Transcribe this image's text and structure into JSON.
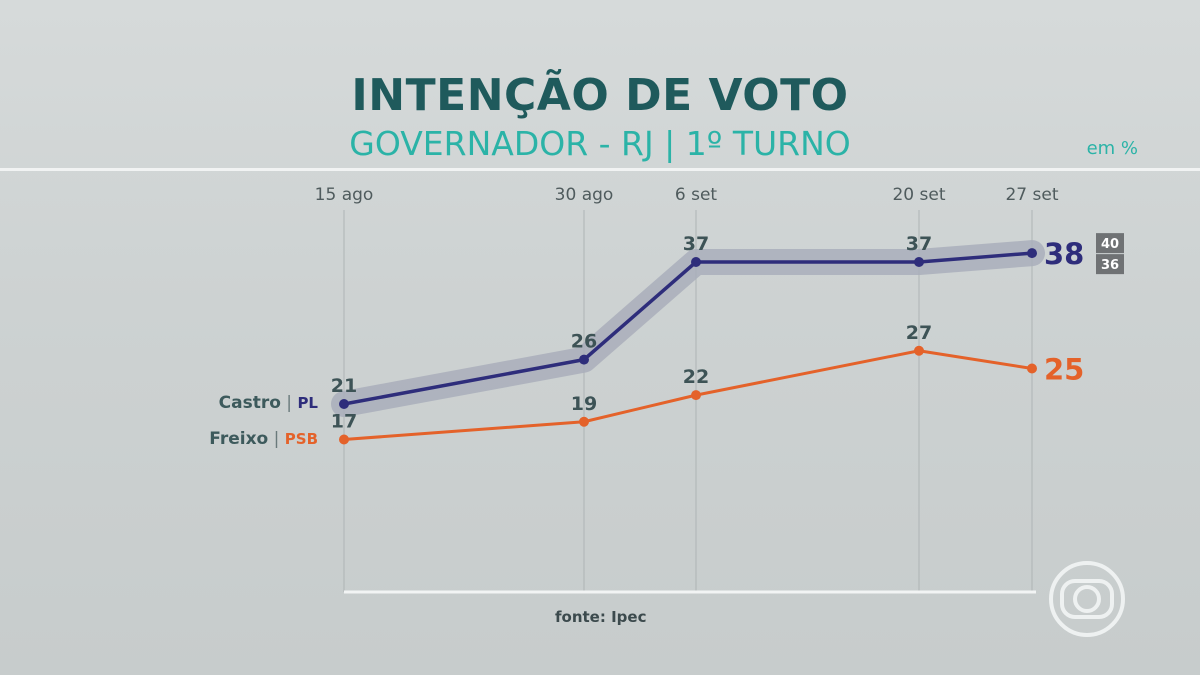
{
  "header": {
    "title": "INTENÇÃO DE VOTO",
    "subtitle": "GOVERNADOR - RJ | 1º TURNO",
    "unit": "em %"
  },
  "footer": {
    "source": "fonte: Ipec"
  },
  "colors": {
    "title": "#1f5a5c",
    "subtitle": "#2bb3a7",
    "castro": "#2e2d7b",
    "freixo": "#e4622a",
    "band": "#a9aebb"
  },
  "chart_data": {
    "type": "line",
    "x": [
      "15 ago",
      "30 ago",
      "6 set",
      "20 set",
      "27 set"
    ],
    "ylim": [
      10,
      45
    ],
    "grid": "vertical lines at each date",
    "series": [
      {
        "name": "Castro",
        "party": "PL",
        "values": [
          21,
          26,
          37,
          37,
          38
        ],
        "margin_of_error": {
          "upper": 40,
          "lower": 36
        }
      },
      {
        "name": "Freixo",
        "party": "PSB",
        "values": [
          17,
          19,
          22,
          27,
          25
        ]
      }
    ]
  },
  "logo": {
    "icon": "globo-logo-icon"
  }
}
